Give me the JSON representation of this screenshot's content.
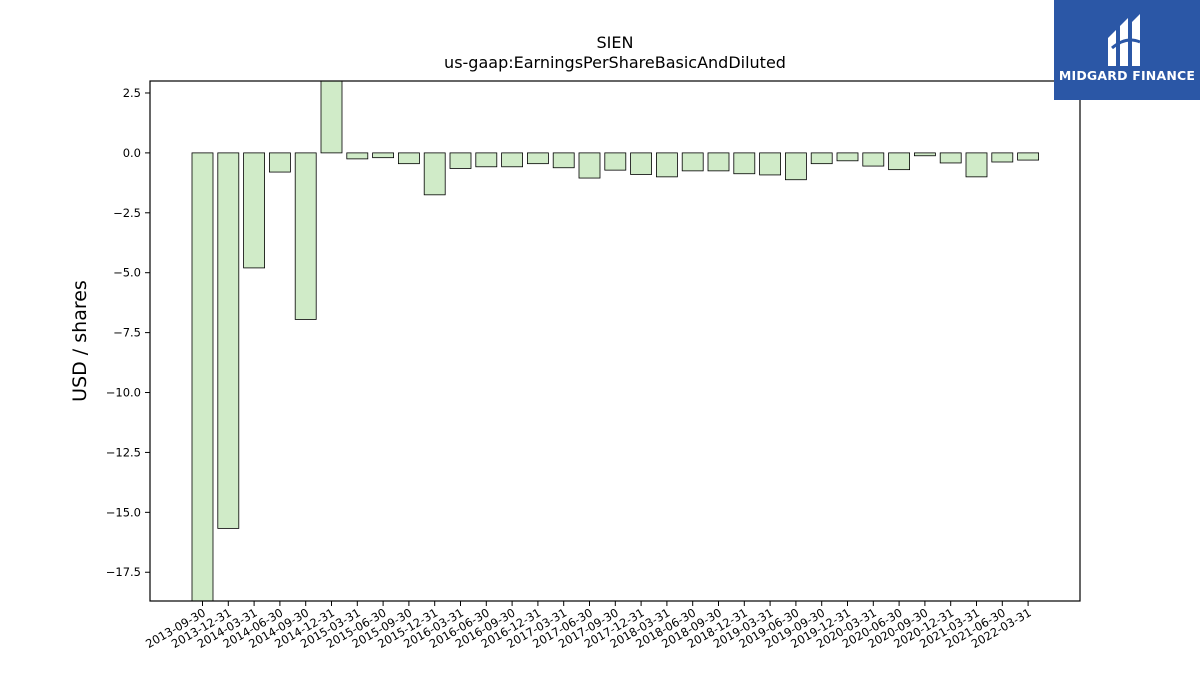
{
  "logo": {
    "text": "MIDGARD FINANCE",
    "background": "#2b57a6"
  },
  "chart_data": {
    "type": "bar",
    "title": "SIEN",
    "subtitle": "us-gaap:EarningsPerShareBasicAndDiluted",
    "xlabel": "",
    "ylabel": "USD / shares",
    "ylim": [
      -18.7,
      3.0
    ],
    "yticks": [
      2.5,
      0.0,
      -2.5,
      -5.0,
      -7.5,
      -10.0,
      -12.5,
      -15.0,
      -17.5
    ],
    "ytick_labels": [
      "2.5",
      "0.0",
      "−2.5",
      "−5.0",
      "−7.5",
      "−10.0",
      "−12.5",
      "−15.0",
      "−17.5"
    ],
    "grid": false,
    "bar_fill": "#d0ebc8",
    "bar_edge": "#000000",
    "categories": [
      "2013-09-30",
      "2013-12-31",
      "2014-03-31",
      "2014-06-30",
      "2014-09-30",
      "2014-12-31",
      "2015-03-31",
      "2015-06-30",
      "2015-09-30",
      "2015-12-31",
      "2016-03-31",
      "2016-06-30",
      "2016-09-30",
      "2016-12-31",
      "2017-03-31",
      "2017-06-30",
      "2017-09-30",
      "2017-12-31",
      "2018-03-31",
      "2018-06-30",
      "2018-09-30",
      "2018-12-31",
      "2019-03-31",
      "2019-06-30",
      "2019-09-30",
      "2019-12-31",
      "2020-03-31",
      "2020-06-30",
      "2020-09-30",
      "2020-12-31",
      "2021-03-31",
      "2021-06-30",
      "2022-03-31"
    ],
    "values": [
      -18.7,
      -15.67,
      -4.8,
      -0.8,
      -6.95,
      3.0,
      -0.25,
      -0.2,
      -0.45,
      -1.75,
      -0.65,
      -0.58,
      -0.58,
      -0.45,
      -0.62,
      -1.05,
      -0.72,
      -0.9,
      -1.0,
      -0.75,
      -0.75,
      -0.87,
      -0.92,
      -1.12,
      -0.45,
      -0.33,
      -0.55,
      -0.7,
      -0.12,
      -0.42,
      -1.0,
      -0.38,
      -0.3
    ]
  }
}
